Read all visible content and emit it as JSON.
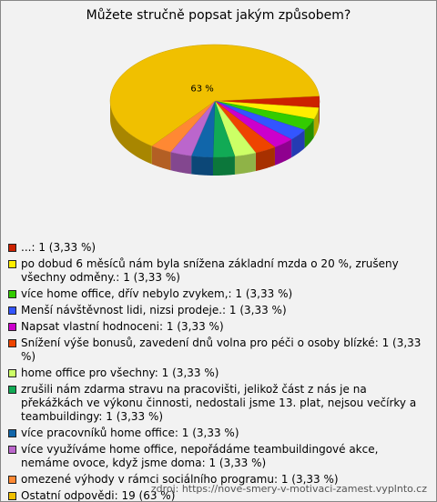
{
  "chart_data": {
    "type": "pie3d",
    "title": "Můžete stručně popsat jakým způsobem?",
    "categories": [
      "...:",
      "po dobud 6 měsíců nám byla snížena základní mzda o 20 %, zrušeny všechny odměny.:",
      "více home office, dřív nebylo zvykem,:",
      "Menší návštěvnost lidi, nizsi prodeje.:",
      "Napsat vlastní hodnoceni:",
      "Snížení výše bonusů, zavedení dnů volna pro péči o osoby blízké:",
      "home office pro všechny:",
      "zrušili nám zdarma stravu na pracovišti, jelikož část z nás je na překážkách ve výkonu činnosti, nedostali jsme 13. plat, nejsou večírky a teambuildingy:",
      "více pracovníků home office:",
      "více využíváme home office, nepořádáme teambuildingové akce, nemáme ovoce, když jsme doma:",
      "omezené výhody v rámci sociálního programu:",
      "Ostatní odpovědi:"
    ],
    "values": [
      1,
      1,
      1,
      1,
      1,
      1,
      1,
      1,
      1,
      1,
      1,
      19
    ],
    "value_labels": [
      "1 (3,33 %)",
      "1 (3,33 %)",
      "1 (3,33 %)",
      "1 (3,33 %)",
      "1 (3,33 %)",
      "1 (3,33 %)",
      "1 (3,33 %)",
      "1 (3,33 %)",
      "1 (3,33 %)",
      "1 (3,33 %)",
      "1 (3,33 %)",
      "19 (63 %)"
    ],
    "slice_labels": [
      null,
      null,
      null,
      null,
      null,
      null,
      null,
      null,
      null,
      null,
      null,
      "63 %"
    ],
    "colors": [
      "#cc2200",
      "#ffee00",
      "#33cc00",
      "#3355ff",
      "#cc00cc",
      "#ee4400",
      "#ccff66",
      "#11aa55",
      "#1166aa",
      "#bb66cc",
      "#ff8833",
      "#f0c000"
    ],
    "source": "zdroj: https://nove-smery-v-motivaci-zamest.vyplnto.cz"
  }
}
